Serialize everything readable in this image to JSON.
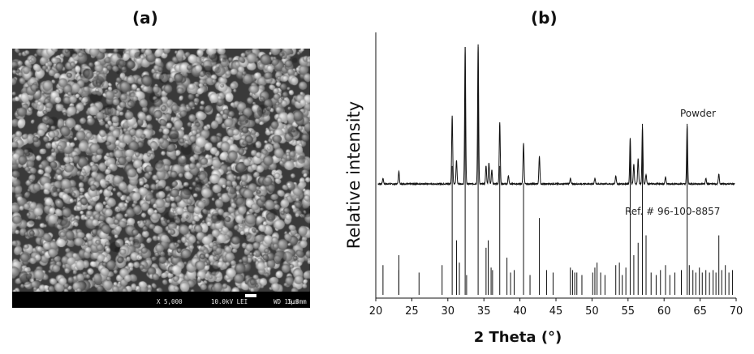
{
  "figure": {
    "panel_a_label": "(a)",
    "panel_b_label": "(b)"
  },
  "sem": {
    "magnification": "X 5,000",
    "voltage": "10.0kV LEI",
    "working_distance": "WD 15.3mm",
    "scale_label": "1μm"
  },
  "chart_data": {
    "type": "line",
    "xlabel": "2 Theta (°)",
    "ylabel": "Relative intensity",
    "xlim": [
      20,
      70
    ],
    "x_ticks": [
      20,
      25,
      30,
      35,
      40,
      45,
      50,
      55,
      60,
      65,
      70
    ],
    "y_tick_labels": "none",
    "grid": false,
    "annotations": [
      "Powder",
      "Ref. # 96-100-8857"
    ],
    "series": [
      {
        "name": "Powder",
        "peaks": [
          {
            "x": 21.0,
            "h": 0.04
          },
          {
            "x": 23.2,
            "h": 0.09
          },
          {
            "x": 30.6,
            "h": 0.49
          },
          {
            "x": 31.2,
            "h": 0.17
          },
          {
            "x": 32.4,
            "h": 0.98
          },
          {
            "x": 34.2,
            "h": 1.0
          },
          {
            "x": 35.3,
            "h": 0.13
          },
          {
            "x": 35.7,
            "h": 0.15
          },
          {
            "x": 36.1,
            "h": 0.1
          },
          {
            "x": 37.2,
            "h": 0.44
          },
          {
            "x": 38.4,
            "h": 0.06
          },
          {
            "x": 40.5,
            "h": 0.29
          },
          {
            "x": 42.7,
            "h": 0.2
          },
          {
            "x": 47.0,
            "h": 0.04
          },
          {
            "x": 50.4,
            "h": 0.04
          },
          {
            "x": 53.3,
            "h": 0.06
          },
          {
            "x": 55.3,
            "h": 0.33
          },
          {
            "x": 55.8,
            "h": 0.14
          },
          {
            "x": 56.4,
            "h": 0.18
          },
          {
            "x": 57.0,
            "h": 0.41
          },
          {
            "x": 57.5,
            "h": 0.07
          },
          {
            "x": 60.2,
            "h": 0.05
          },
          {
            "x": 63.2,
            "h": 0.42
          },
          {
            "x": 65.8,
            "h": 0.04
          },
          {
            "x": 67.6,
            "h": 0.07
          }
        ]
      },
      {
        "name": "Ref. # 96-100-8857",
        "sticks": [
          {
            "x": 21.0,
            "h": 0.12
          },
          {
            "x": 23.2,
            "h": 0.1
          },
          {
            "x": 23.2,
            "h": 0.16
          },
          {
            "x": 26.0,
            "h": 0.09
          },
          {
            "x": 29.2,
            "h": 0.12
          },
          {
            "x": 30.6,
            "h": 0.52
          },
          {
            "x": 31.2,
            "h": 0.22
          },
          {
            "x": 31.6,
            "h": 0.13
          },
          {
            "x": 32.4,
            "h": 1.0
          },
          {
            "x": 32.6,
            "h": 0.08
          },
          {
            "x": 34.2,
            "h": 1.0
          },
          {
            "x": 35.3,
            "h": 0.19
          },
          {
            "x": 35.6,
            "h": 0.22
          },
          {
            "x": 36.0,
            "h": 0.11
          },
          {
            "x": 36.2,
            "h": 0.1
          },
          {
            "x": 37.2,
            "h": 0.52
          },
          {
            "x": 38.2,
            "h": 0.15
          },
          {
            "x": 38.7,
            "h": 0.09
          },
          {
            "x": 39.2,
            "h": 0.1
          },
          {
            "x": 40.5,
            "h": 0.45
          },
          {
            "x": 41.4,
            "h": 0.08
          },
          {
            "x": 42.7,
            "h": 0.31
          },
          {
            "x": 43.7,
            "h": 0.1
          },
          {
            "x": 44.6,
            "h": 0.09
          },
          {
            "x": 47.0,
            "h": 0.11
          },
          {
            "x": 47.3,
            "h": 0.1
          },
          {
            "x": 47.6,
            "h": 0.09
          },
          {
            "x": 47.9,
            "h": 0.09
          },
          {
            "x": 48.6,
            "h": 0.08
          },
          {
            "x": 50.1,
            "h": 0.09
          },
          {
            "x": 50.4,
            "h": 0.11
          },
          {
            "x": 50.7,
            "h": 0.13
          },
          {
            "x": 51.2,
            "h": 0.09
          },
          {
            "x": 51.8,
            "h": 0.08
          },
          {
            "x": 53.3,
            "h": 0.12
          },
          {
            "x": 53.8,
            "h": 0.13
          },
          {
            "x": 54.2,
            "h": 0.08
          },
          {
            "x": 54.7,
            "h": 0.11
          },
          {
            "x": 55.3,
            "h": 0.59
          },
          {
            "x": 55.8,
            "h": 0.16
          },
          {
            "x": 56.4,
            "h": 0.21
          },
          {
            "x": 57.0,
            "h": 0.69
          },
          {
            "x": 57.5,
            "h": 0.24
          },
          {
            "x": 58.2,
            "h": 0.09
          },
          {
            "x": 58.9,
            "h": 0.08
          },
          {
            "x": 59.5,
            "h": 0.1
          },
          {
            "x": 60.2,
            "h": 0.12
          },
          {
            "x": 60.8,
            "h": 0.08
          },
          {
            "x": 61.5,
            "h": 0.09
          },
          {
            "x": 62.4,
            "h": 0.1
          },
          {
            "x": 63.2,
            "h": 0.69
          },
          {
            "x": 63.5,
            "h": 0.12
          },
          {
            "x": 64.0,
            "h": 0.1
          },
          {
            "x": 64.4,
            "h": 0.09
          },
          {
            "x": 64.9,
            "h": 0.11
          },
          {
            "x": 65.3,
            "h": 0.09
          },
          {
            "x": 65.8,
            "h": 0.1
          },
          {
            "x": 66.3,
            "h": 0.09
          },
          {
            "x": 66.8,
            "h": 0.1
          },
          {
            "x": 67.2,
            "h": 0.09
          },
          {
            "x": 67.6,
            "h": 0.24
          },
          {
            "x": 68.0,
            "h": 0.1
          },
          {
            "x": 68.5,
            "h": 0.12
          },
          {
            "x": 69.0,
            "h": 0.09
          },
          {
            "x": 69.5,
            "h": 0.1
          }
        ]
      }
    ]
  }
}
